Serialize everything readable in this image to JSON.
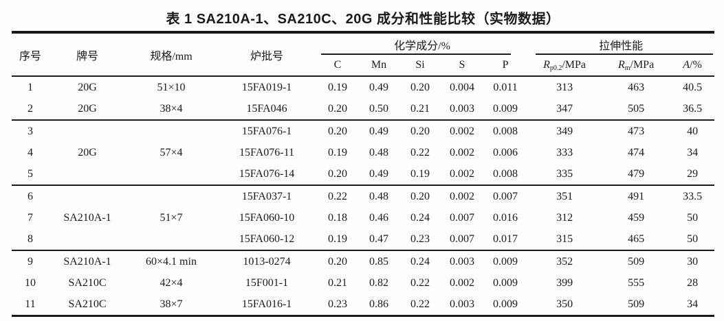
{
  "page": {
    "background": "#fcfcf9",
    "ink": "#1a1a1a"
  },
  "caption": "表 1  SA210A-1、SA210C、20G 成分和性能比较（实物数据）",
  "header": {
    "serial": "序号",
    "grade": "牌号",
    "spec": "规格/mm",
    "heat": "炉批号",
    "chem_group": "化学成分/%",
    "tensile_group": "拉伸性能",
    "chem_cols": [
      "C",
      "Mn",
      "Si",
      "S",
      "P"
    ],
    "tensile_cols": [
      {
        "base": "R",
        "sub": "p0.2",
        "suffix": "/MPa"
      },
      {
        "base": "R",
        "sub": "m",
        "suffix": "/MPa"
      },
      {
        "base": "A",
        "sub": "",
        "suffix": "/%"
      }
    ]
  },
  "rows": [
    {
      "cells": [
        {
          "t": "1"
        },
        {
          "t": "20G"
        },
        {
          "t": "51×10"
        },
        {
          "t": "15FA019-1"
        },
        {
          "t": "0.19"
        },
        {
          "t": "0.49"
        },
        {
          "t": "0.20"
        },
        {
          "t": "0.004"
        },
        {
          "t": "0.011"
        },
        {
          "t": "313"
        },
        {
          "t": "463"
        },
        {
          "t": "40.5"
        }
      ]
    },
    {
      "group_end": true,
      "cells": [
        {
          "t": "2"
        },
        {
          "t": "20G"
        },
        {
          "t": "38×4"
        },
        {
          "t": "15FA046"
        },
        {
          "t": "0.20"
        },
        {
          "t": "0.50"
        },
        {
          "t": "0.21"
        },
        {
          "t": "0.003"
        },
        {
          "t": "0.009"
        },
        {
          "t": "347"
        },
        {
          "t": "505"
        },
        {
          "t": "36.5"
        }
      ]
    },
    {
      "cells": [
        {
          "t": "3"
        },
        {
          "t": "20G",
          "rs": 3
        },
        {
          "t": "57×4",
          "rs": 3
        },
        {
          "t": "15FA076-1"
        },
        {
          "t": "0.20"
        },
        {
          "t": "0.49"
        },
        {
          "t": "0.20"
        },
        {
          "t": "0.002"
        },
        {
          "t": "0.008"
        },
        {
          "t": "349"
        },
        {
          "t": "473"
        },
        {
          "t": "40"
        }
      ]
    },
    {
      "cells": [
        {
          "t": "4"
        },
        {
          "t": "15FA076-11"
        },
        {
          "t": "0.19"
        },
        {
          "t": "0.48"
        },
        {
          "t": "0.22"
        },
        {
          "t": "0.002"
        },
        {
          "t": "0.006"
        },
        {
          "t": "333"
        },
        {
          "t": "474"
        },
        {
          "t": "34"
        }
      ]
    },
    {
      "group_end": true,
      "cells": [
        {
          "t": "5"
        },
        {
          "t": "15FA076-14"
        },
        {
          "t": "0.20"
        },
        {
          "t": "0.49"
        },
        {
          "t": "0.19"
        },
        {
          "t": "0.002"
        },
        {
          "t": "0.008"
        },
        {
          "t": "335"
        },
        {
          "t": "479"
        },
        {
          "t": "29"
        }
      ]
    },
    {
      "cells": [
        {
          "t": "6"
        },
        {
          "t": "SA210A-1",
          "rs": 3
        },
        {
          "t": "51×7",
          "rs": 3
        },
        {
          "t": "15FA037-1"
        },
        {
          "t": "0.22"
        },
        {
          "t": "0.48"
        },
        {
          "t": "0.20"
        },
        {
          "t": "0.002"
        },
        {
          "t": "0.007"
        },
        {
          "t": "351"
        },
        {
          "t": "491"
        },
        {
          "t": "33.5"
        }
      ]
    },
    {
      "cells": [
        {
          "t": "7"
        },
        {
          "t": "15FA060-10"
        },
        {
          "t": "0.18"
        },
        {
          "t": "0.46"
        },
        {
          "t": "0.24"
        },
        {
          "t": "0.007"
        },
        {
          "t": "0.016"
        },
        {
          "t": "312"
        },
        {
          "t": "459"
        },
        {
          "t": "50"
        }
      ]
    },
    {
      "group_end": true,
      "cells": [
        {
          "t": "8"
        },
        {
          "t": "15FA060-12"
        },
        {
          "t": "0.19"
        },
        {
          "t": "0.47"
        },
        {
          "t": "0.23"
        },
        {
          "t": "0.007"
        },
        {
          "t": "0.017"
        },
        {
          "t": "315"
        },
        {
          "t": "465"
        },
        {
          "t": "50"
        }
      ]
    },
    {
      "cells": [
        {
          "t": "9"
        },
        {
          "t": "SA210A-1"
        },
        {
          "t": "60×4.1 min"
        },
        {
          "t": "1013-0274"
        },
        {
          "t": "0.20"
        },
        {
          "t": "0.85"
        },
        {
          "t": "0.24"
        },
        {
          "t": "0.003"
        },
        {
          "t": "0.009"
        },
        {
          "t": "352"
        },
        {
          "t": "509"
        },
        {
          "t": "30"
        }
      ]
    },
    {
      "cells": [
        {
          "t": "10"
        },
        {
          "t": "SA210C"
        },
        {
          "t": "42×4"
        },
        {
          "t": "15F001-1"
        },
        {
          "t": "0.21"
        },
        {
          "t": "0.82"
        },
        {
          "t": "0.22"
        },
        {
          "t": "0.002"
        },
        {
          "t": "0.009"
        },
        {
          "t": "399"
        },
        {
          "t": "555"
        },
        {
          "t": "28"
        }
      ]
    },
    {
      "cells": [
        {
          "t": "11"
        },
        {
          "t": "SA210C"
        },
        {
          "t": "38×7"
        },
        {
          "t": "15FA016-1"
        },
        {
          "t": "0.23"
        },
        {
          "t": "0.86"
        },
        {
          "t": "0.22"
        },
        {
          "t": "0.003"
        },
        {
          "t": "0.009"
        },
        {
          "t": "350"
        },
        {
          "t": "509"
        },
        {
          "t": "34"
        }
      ]
    }
  ]
}
